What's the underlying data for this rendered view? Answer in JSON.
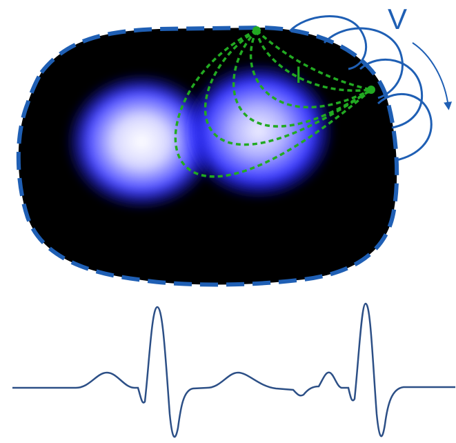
{
  "labels": {
    "voltage": "V",
    "current": "I"
  },
  "colors": {
    "background": "#ffffff",
    "body_fill": "#000000",
    "boundary": "#1f5fb4",
    "conductivity_blob": "#1a1aff",
    "conductivity_core": "#ffffff",
    "current_lines": "#22aa22",
    "voltage_lines": "#1f5fb4",
    "ecg_trace": "#2c4f86"
  },
  "icons": {
    "voltage_arrow": "curved-arrow-icon"
  }
}
